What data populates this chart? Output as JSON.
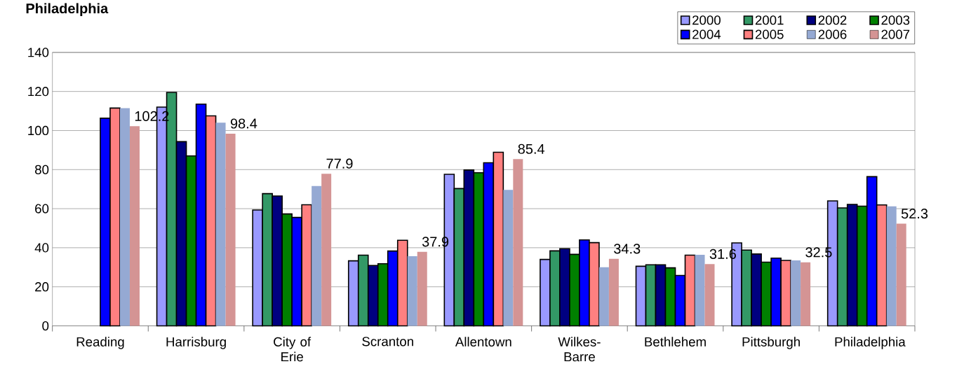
{
  "chart_data": {
    "type": "bar",
    "title": "Philadelphia",
    "categories": [
      "Reading",
      "Harrisburg",
      "City of Erie",
      "Scranton",
      "Allentown",
      "Wilkes-Barre",
      "Bethlehem",
      "Pittsburgh",
      "Philadelphia"
    ],
    "series": [
      {
        "name": "2000",
        "color": "#9999ff",
        "values": [
          null,
          112,
          59.3,
          33.3,
          77.6,
          34.0,
          30.5,
          42.5,
          64.0
        ]
      },
      {
        "name": "2001",
        "color": "#339966",
        "values": [
          null,
          119.5,
          67.7,
          36.2,
          70.3,
          38.4,
          31.3,
          38.8,
          60.4
        ]
      },
      {
        "name": "2002",
        "color": "#000080",
        "values": [
          null,
          94.3,
          66.5,
          30.9,
          79.8,
          39.5,
          31.3,
          36.8,
          62.2
        ]
      },
      {
        "name": "2003",
        "color": "#008000",
        "values": [
          null,
          87,
          57.3,
          31.8,
          78.4,
          36.6,
          29.7,
          32.6,
          61.3
        ]
      },
      {
        "name": "2004",
        "color": "#0000ff",
        "values": [
          106.3,
          113.5,
          55.5,
          38.3,
          83.5,
          44.0,
          25.8,
          34.7,
          76.4
        ]
      },
      {
        "name": "2005",
        "color": "#ff8080",
        "values": [
          111.5,
          107.5,
          62.0,
          43.8,
          88.9,
          42.6,
          36.2,
          33.5,
          61.9
        ]
      },
      {
        "name": "2006",
        "color": "#95a9d3",
        "values": [
          111.5,
          104,
          71.6,
          35.7,
          69.6,
          30.0,
          36.4,
          33.5,
          61.2
        ]
      },
      {
        "name": "2007",
        "color": "#d49494",
        "values": [
          102.2,
          98.4,
          77.9,
          37.9,
          85.4,
          34.3,
          31.6,
          32.5,
          52.3
        ],
        "value_labels": [
          "102.2",
          "98.4",
          "77.9",
          "37.9",
          "85.4",
          "34.3",
          "31.6",
          "32.5",
          "52.3"
        ]
      }
    ],
    "ylim": [
      0,
      140
    ],
    "yticks": [
      0,
      20,
      40,
      60,
      80,
      100,
      120,
      140
    ],
    "grid": "y",
    "legend": "top right"
  }
}
